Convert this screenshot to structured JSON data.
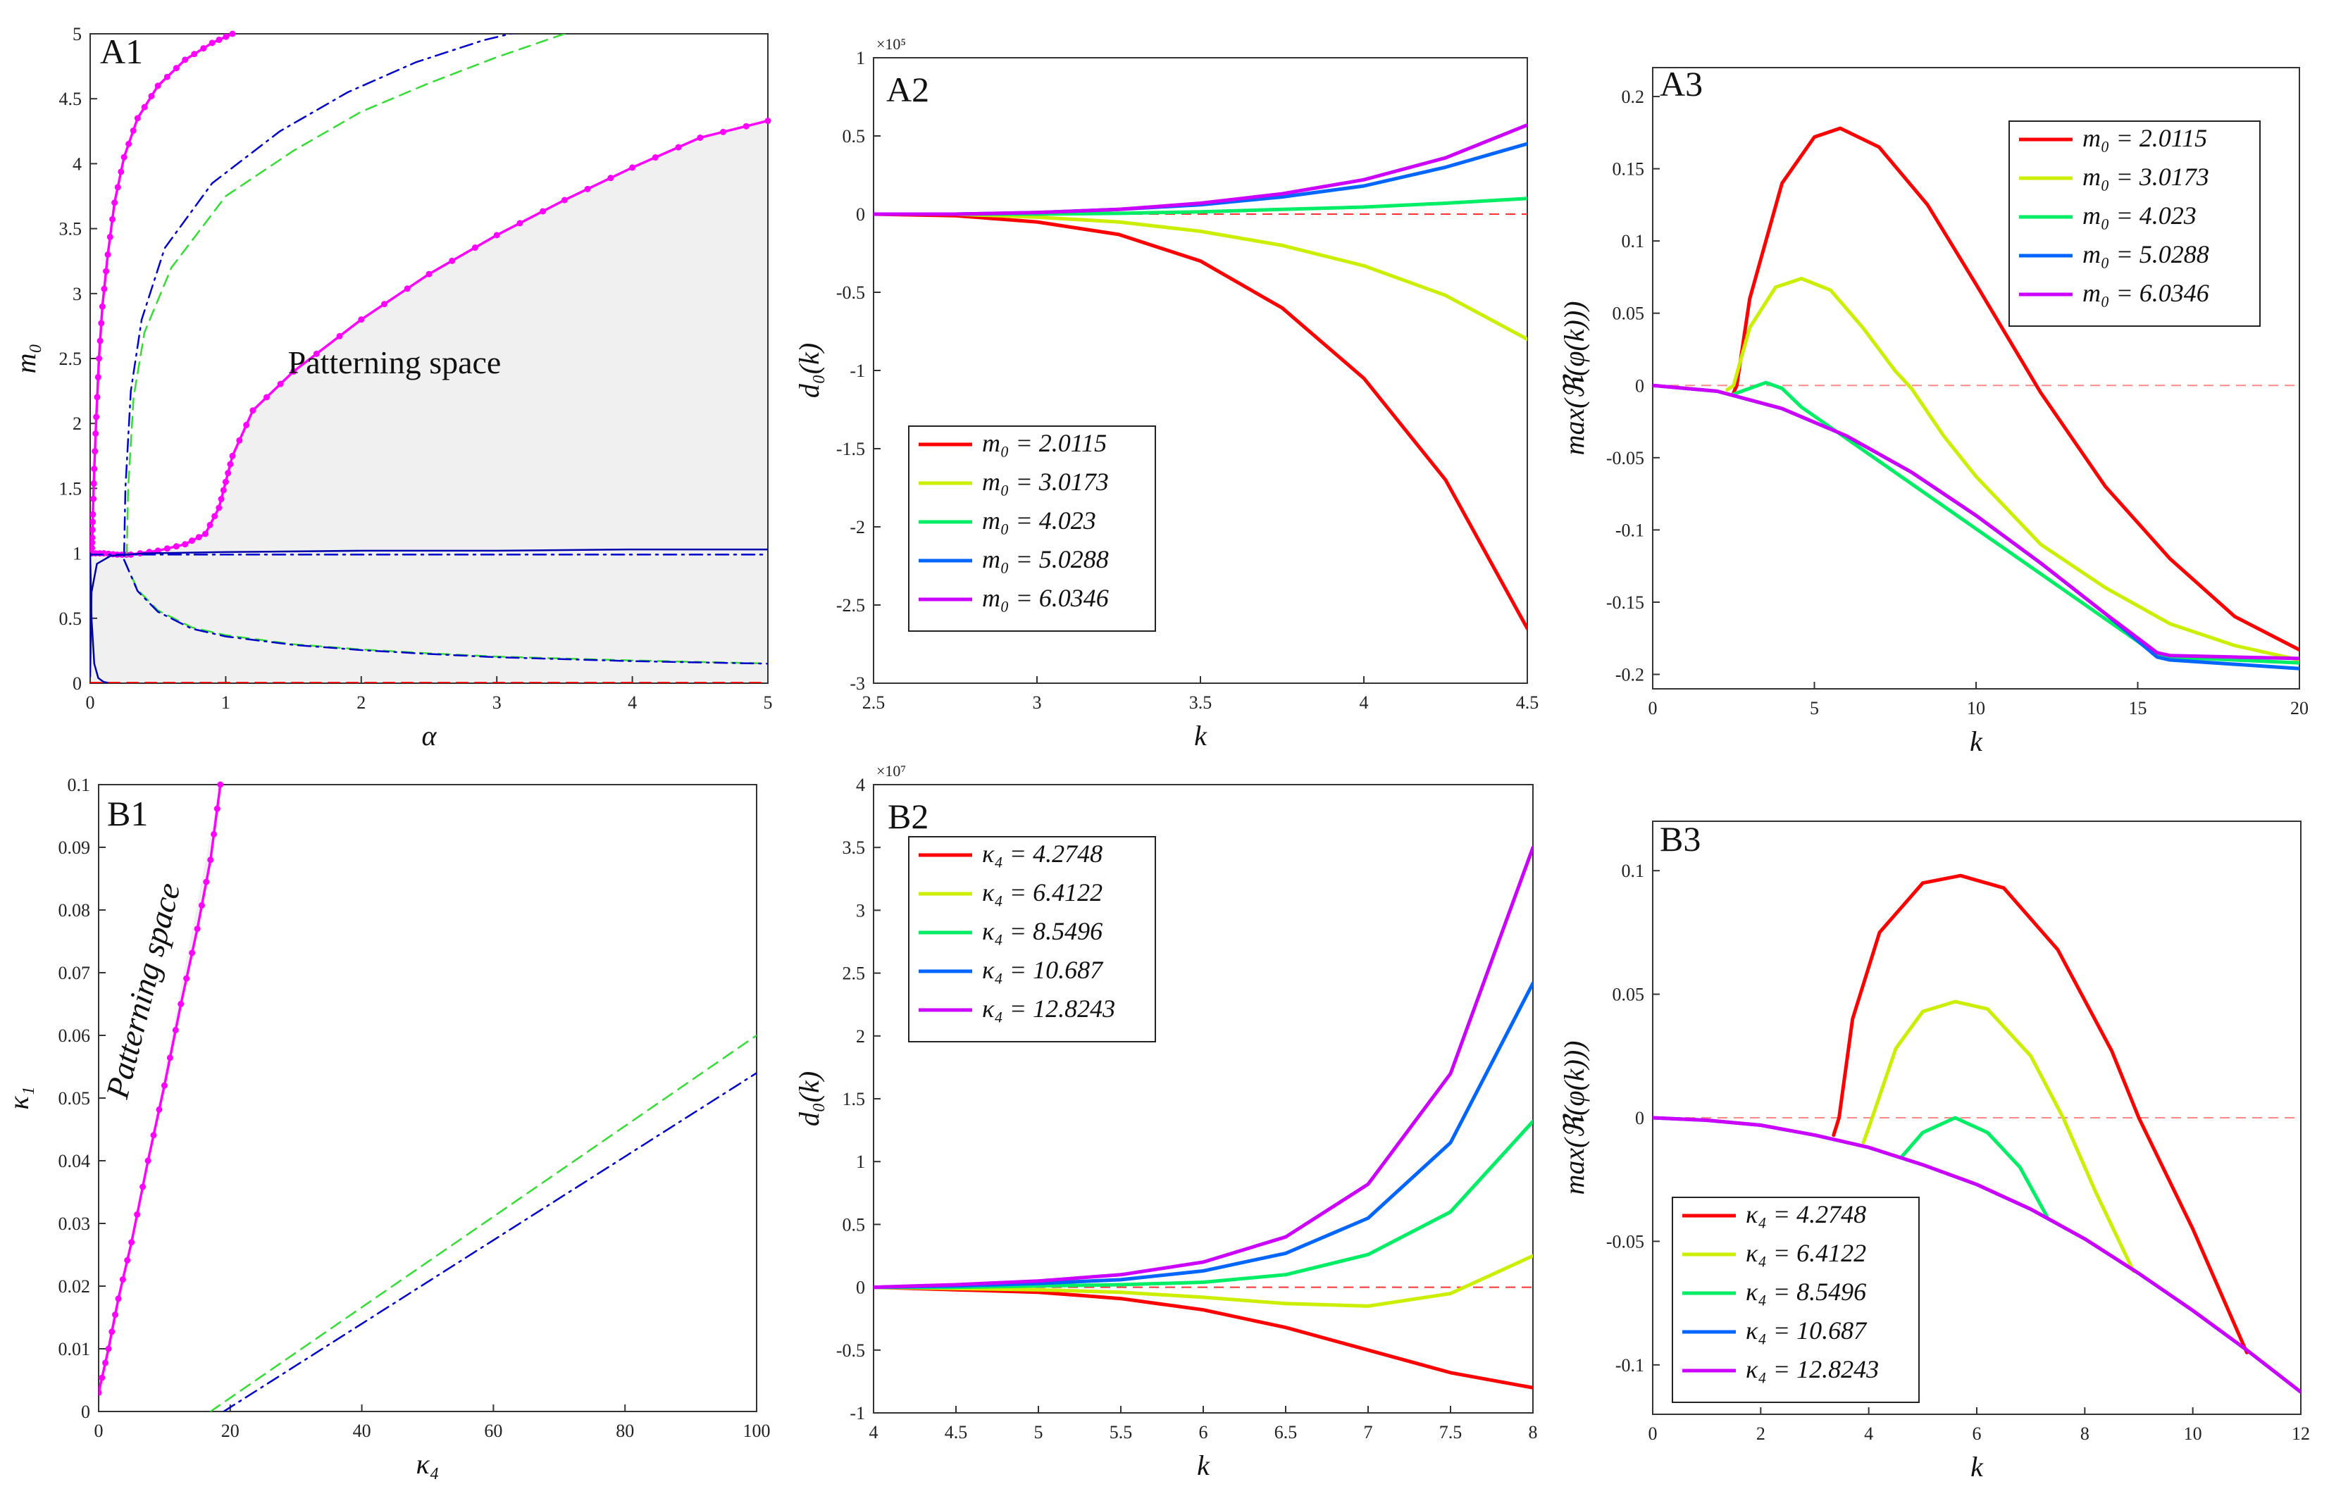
{
  "chart_data": [
    {
      "id": "A1",
      "type": "line",
      "panel_label": "A1",
      "xlabel": "α",
      "ylabel": "m₀",
      "xlim": [
        0,
        5
      ],
      "ylim": [
        0,
        5
      ],
      "xticks": [
        "0",
        "1",
        "2",
        "3",
        "4",
        "5"
      ],
      "yticks": [
        "0",
        "0.5",
        "1",
        "1.5",
        "2",
        "2.5",
        "3",
        "3.5",
        "4",
        "4.5",
        "5"
      ],
      "annotation": "Patterning space",
      "shaded_region": "right of upper magenta curve, below it down to m0 = 0",
      "series": [
        {
          "name": "upper boundary",
          "color": "#ff00ff",
          "style": "solid-dots",
          "x": [
            0.012,
            0.015,
            0.02,
            0.03,
            0.045,
            0.065,
            0.09,
            0.13,
            0.18,
            0.25,
            0.35,
            0.5,
            0.7,
            0.9,
            1.05
          ],
          "y": [
            1.0,
            1.12,
            1.3,
            1.65,
            2.05,
            2.5,
            2.9,
            3.3,
            3.7,
            4.05,
            4.35,
            4.6,
            4.8,
            4.93,
            5.0
          ]
        },
        {
          "name": "lower boundary",
          "color": "#ff00ff",
          "style": "solid-dots",
          "x": [
            0.01,
            0.1,
            0.2,
            0.3,
            0.5,
            0.7,
            0.85,
            0.95,
            1.0,
            1.05,
            1.2,
            1.5,
            2.0,
            2.5,
            3.0,
            3.5,
            4.0,
            4.5,
            5.0
          ],
          "y": [
            1.0,
            1.0,
            0.99,
            0.99,
            1.02,
            1.07,
            1.15,
            1.35,
            1.55,
            1.75,
            2.1,
            2.4,
            2.8,
            3.15,
            3.45,
            3.72,
            3.97,
            4.2,
            4.33
          ]
        },
        {
          "name": "green dashed upper",
          "color": "#33dd33",
          "style": "dashed",
          "x": [
            0.27,
            0.28,
            0.32,
            0.4,
            0.6,
            1.0,
            1.5,
            2.0,
            2.5,
            3.0,
            3.5
          ],
          "y": [
            0.98,
            1.5,
            2.2,
            2.7,
            3.2,
            3.75,
            4.1,
            4.4,
            4.62,
            4.82,
            5.0
          ]
        },
        {
          "name": "blue dash-dot upper",
          "color": "#0000cc",
          "style": "dashdot",
          "x": [
            0.25,
            0.26,
            0.3,
            0.38,
            0.55,
            0.9,
            1.4,
            1.9,
            2.4,
            2.9,
            3.3
          ],
          "y": [
            0.98,
            1.5,
            2.25,
            2.8,
            3.35,
            3.85,
            4.25,
            4.55,
            4.78,
            4.95,
            5.05
          ]
        },
        {
          "name": "green dashed lower",
          "color": "#33dd33",
          "style": "dashed",
          "x": [
            0.25,
            0.35,
            0.5,
            0.75,
            1.0,
            1.5,
            2.0,
            2.5,
            3.0,
            3.5,
            4.0,
            4.5,
            5.0
          ],
          "y": [
            0.95,
            0.72,
            0.56,
            0.43,
            0.37,
            0.3,
            0.26,
            0.23,
            0.205,
            0.19,
            0.175,
            0.163,
            0.152
          ]
        },
        {
          "name": "blue dash-dot lower",
          "color": "#0000cc",
          "style": "dashdot",
          "x": [
            0.25,
            0.35,
            0.5,
            0.75,
            1.0,
            1.5,
            2.0,
            2.5,
            3.0,
            3.5,
            4.0,
            4.5,
            5.0
          ],
          "y": [
            0.95,
            0.71,
            0.55,
            0.42,
            0.36,
            0.295,
            0.255,
            0.225,
            0.2,
            0.185,
            0.17,
            0.16,
            0.15
          ]
        },
        {
          "name": "blue solid upper",
          "color": "#0000aa",
          "style": "solid",
          "x": [
            0.0,
            0.01,
            0.05,
            0.15,
            0.4,
            1.0,
            2.0,
            3.0,
            4.0,
            5.0
          ],
          "y": [
            0.05,
            0.7,
            0.92,
            0.98,
            1.0,
            1.01,
            1.02,
            1.02,
            1.03,
            1.03
          ]
        },
        {
          "name": "blue dash-dot m0=1",
          "color": "#0000cc",
          "style": "dashdot",
          "x": [
            0.0,
            5.0
          ],
          "y": [
            0.99,
            0.99
          ]
        },
        {
          "name": "blue solid lower",
          "color": "#0000aa",
          "style": "solid",
          "x": [
            0.0,
            0.01,
            0.03,
            0.06,
            0.1,
            0.15
          ],
          "y": [
            1.0,
            0.5,
            0.15,
            0.04,
            0.01,
            0.0
          ]
        },
        {
          "name": "red dashed m0=0",
          "color": "#ee0000",
          "style": "dashed",
          "x": [
            0.0,
            5.0
          ],
          "y": [
            0.003,
            0.003
          ]
        }
      ]
    },
    {
      "id": "A2",
      "type": "line",
      "panel_label": "A2",
      "xlabel": "k",
      "ylabel": "d₀(k)",
      "exponent_label": "×10⁵",
      "xlim": [
        2.5,
        4.5
      ],
      "ylim": [
        -3,
        1
      ],
      "xticks": [
        "2.5",
        "3",
        "3.5",
        "4",
        "4.5"
      ],
      "yticks": [
        "-3",
        "-2.5",
        "-2",
        "-1.5",
        "-1",
        "-0.5",
        "0",
        "0.5",
        "1"
      ],
      "legend_position": "bottom-left",
      "reference_line": {
        "y": 0,
        "color": "#ff3333",
        "style": "dashed"
      },
      "x": [
        2.5,
        2.75,
        3.0,
        3.25,
        3.5,
        3.75,
        4.0,
        4.25,
        4.5
      ],
      "series": [
        {
          "name": "m₀ = 2.0115",
          "color": "#ff0000",
          "values": [
            0,
            -0.01,
            -0.05,
            -0.13,
            -0.3,
            -0.6,
            -1.05,
            -1.7,
            -2.65
          ]
        },
        {
          "name": "m₀ = 3.0173",
          "color": "#ccee00",
          "values": [
            0,
            0,
            -0.02,
            -0.05,
            -0.11,
            -0.2,
            -0.33,
            -0.52,
            -0.8
          ]
        },
        {
          "name": "m₀ = 4.023",
          "color": "#00ee66",
          "values": [
            0,
            0,
            0,
            0.005,
            0.015,
            0.03,
            0.045,
            0.07,
            0.1
          ]
        },
        {
          "name": "m₀ = 5.0288",
          "color": "#0066ff",
          "values": [
            0,
            0,
            0.01,
            0.03,
            0.06,
            0.11,
            0.18,
            0.3,
            0.45
          ]
        },
        {
          "name": "m₀ = 6.0346",
          "color": "#cc00ff",
          "values": [
            0,
            0,
            0.01,
            0.03,
            0.07,
            0.13,
            0.22,
            0.36,
            0.57
          ]
        }
      ]
    },
    {
      "id": "A3",
      "type": "line",
      "panel_label": "A3",
      "xlabel": "k",
      "ylabel": "max(ℜ(φ(k)))",
      "xlim": [
        0,
        20
      ],
      "ylim": [
        -0.21,
        0.22
      ],
      "xticks": [
        "0",
        "5",
        "10",
        "15",
        "20"
      ],
      "yticks": [
        "-0.2",
        "-0.15",
        "-0.1",
        "-0.05",
        "0",
        "0.05",
        "0.1",
        "0.15",
        "0.2"
      ],
      "legend_position": "top-right",
      "reference_line": {
        "y": 0,
        "color": "#ff8888",
        "style": "dashed"
      },
      "series": [
        {
          "name": "m₀ = 2.0115",
          "color": "#ff0000",
          "x": [
            2.5,
            2.6,
            3.0,
            4.0,
            5.0,
            5.8,
            7.0,
            8.5,
            10.0,
            12.0,
            14.0,
            16.0,
            18.0,
            20.0
          ],
          "y": [
            -0.005,
            0.0,
            0.06,
            0.14,
            0.172,
            0.178,
            0.165,
            0.125,
            0.07,
            -0.005,
            -0.07,
            -0.12,
            -0.16,
            -0.183
          ]
        },
        {
          "name": "m₀ = 3.0173",
          "color": "#ccee00",
          "x": [
            2.3,
            2.5,
            3.0,
            3.8,
            4.6,
            5.5,
            6.5,
            7.5,
            8.0,
            9.0,
            10.0,
            12.0,
            14.0,
            16.0,
            18.0,
            20.0
          ],
          "y": [
            -0.003,
            0.0,
            0.04,
            0.068,
            0.074,
            0.066,
            0.04,
            0.01,
            -0.002,
            -0.035,
            -0.063,
            -0.11,
            -0.14,
            -0.165,
            -0.18,
            -0.19
          ]
        },
        {
          "name": "m₀ = 4.023",
          "color": "#00ee66",
          "x": [
            2.5,
            3.0,
            3.5,
            4.0,
            4.6,
            15.5,
            16.0,
            18.0,
            20.0
          ],
          "y": [
            -0.006,
            -0.002,
            0.002,
            -0.002,
            -0.015,
            -0.185,
            -0.188,
            -0.19,
            -0.192
          ]
        },
        {
          "name": "m₀ = 5.0288",
          "color": "#0066ff",
          "x": [
            0.0,
            2.0,
            4.0,
            6.0,
            8.0,
            10.0,
            12.0,
            14.0,
            15.6,
            16.0,
            18.0,
            20.0
          ],
          "y": [
            0.0,
            -0.004,
            -0.016,
            -0.035,
            -0.06,
            -0.09,
            -0.123,
            -0.158,
            -0.188,
            -0.19,
            -0.193,
            -0.196
          ]
        },
        {
          "name": "m₀ = 6.0346",
          "color": "#cc00ff",
          "x": [
            0.0,
            2.0,
            4.0,
            6.0,
            8.0,
            10.0,
            12.0,
            14.0,
            15.6,
            16.0,
            18.0,
            20.0
          ],
          "y": [
            0.0,
            -0.004,
            -0.016,
            -0.035,
            -0.06,
            -0.09,
            -0.123,
            -0.158,
            -0.185,
            -0.187,
            -0.188,
            -0.189
          ]
        }
      ]
    },
    {
      "id": "B1",
      "type": "line",
      "panel_label": "B1",
      "xlabel": "κ₄",
      "ylabel": "κ₁",
      "xlim": [
        0,
        100
      ],
      "ylim": [
        0,
        0.1
      ],
      "xticks": [
        "0",
        "20",
        "40",
        "60",
        "80",
        "100"
      ],
      "yticks": [
        "0",
        "0.01",
        "0.02",
        "0.03",
        "0.04",
        "0.05",
        "0.06",
        "0.07",
        "0.08",
        "0.09",
        "0.1"
      ],
      "annotation": "Patterning space",
      "series": [
        {
          "name": "boundary",
          "color": "#ff00ff",
          "style": "solid-dots",
          "x": [
            0.0,
            1.5,
            3.0,
            5.0,
            7.5,
            10.0,
            12.5,
            15.0,
            17.0,
            18.5
          ],
          "y": [
            0.003,
            0.01,
            0.018,
            0.027,
            0.04,
            0.052,
            0.065,
            0.077,
            0.088,
            0.1
          ]
        },
        {
          "name": "green dashed",
          "color": "#33dd33",
          "style": "dashed",
          "x": [
            17.0,
            100.0
          ],
          "y": [
            0.0,
            0.06
          ]
        },
        {
          "name": "blue dash-dot",
          "color": "#0000cc",
          "style": "dashdot",
          "x": [
            19.0,
            100.0
          ],
          "y": [
            0.0,
            0.054
          ]
        }
      ]
    },
    {
      "id": "B2",
      "type": "line",
      "panel_label": "B2",
      "xlabel": "k",
      "ylabel": "d₀(k)",
      "exponent_label": "×10⁷",
      "xlim": [
        4,
        8
      ],
      "ylim": [
        -1,
        4
      ],
      "xticks": [
        "4",
        "4.5",
        "5",
        "5.5",
        "6",
        "6.5",
        "7",
        "7.5",
        "8"
      ],
      "yticks": [
        "-1",
        "-0.5",
        "0",
        "0.5",
        "1",
        "1.5",
        "2",
        "2.5",
        "3",
        "3.5",
        "4"
      ],
      "legend_position": "top-left",
      "reference_line": {
        "y": 0,
        "color": "#ff3333",
        "style": "dashed"
      },
      "x": [
        4.0,
        4.5,
        5.0,
        5.5,
        6.0,
        6.5,
        7.0,
        7.5,
        8.0
      ],
      "series": [
        {
          "name": "κ₄ = 4.2748",
          "color": "#ff0000",
          "values": [
            0,
            -0.02,
            -0.04,
            -0.09,
            -0.18,
            -0.32,
            -0.5,
            -0.68,
            -0.8
          ]
        },
        {
          "name": "κ₄ = 6.4122",
          "color": "#ccee00",
          "values": [
            0,
            -0.01,
            -0.02,
            -0.04,
            -0.08,
            -0.13,
            -0.15,
            -0.05,
            0.25
          ]
        },
        {
          "name": "κ₄ = 8.5496",
          "color": "#00ee66",
          "values": [
            0,
            0,
            0.01,
            0.02,
            0.04,
            0.1,
            0.26,
            0.6,
            1.32
          ]
        },
        {
          "name": "κ₄ = 10.687",
          "color": "#0066ff",
          "values": [
            0,
            0.01,
            0.03,
            0.06,
            0.13,
            0.27,
            0.55,
            1.15,
            2.42
          ]
        },
        {
          "name": "κ₄ = 12.8243",
          "color": "#cc00ff",
          "values": [
            0,
            0.02,
            0.05,
            0.1,
            0.2,
            0.4,
            0.82,
            1.7,
            3.5
          ]
        }
      ]
    },
    {
      "id": "B3",
      "type": "line",
      "panel_label": "B3",
      "xlabel": "k",
      "ylabel": "max(ℜ(φ(k)))",
      "xlim": [
        0,
        12
      ],
      "ylim": [
        -0.12,
        0.12
      ],
      "xticks": [
        "0",
        "2",
        "4",
        "6",
        "8",
        "10",
        "12"
      ],
      "yticks": [
        "-0.1",
        "-0.05",
        "0",
        "0.05",
        "0.1"
      ],
      "legend_position": "bottom-left",
      "reference_line": {
        "y": 0,
        "color": "#ff8888",
        "style": "dashed"
      },
      "series": [
        {
          "name": "κ₄ = 4.2748",
          "color": "#ff0000",
          "x": [
            3.35,
            3.45,
            3.7,
            4.2,
            5.0,
            5.7,
            6.5,
            7.5,
            8.5,
            9.0,
            10.0,
            11.0
          ],
          "y": [
            -0.007,
            0.0,
            0.04,
            0.075,
            0.095,
            0.098,
            0.093,
            0.068,
            0.027,
            0.0,
            -0.045,
            -0.095
          ]
        },
        {
          "name": "κ₄ = 6.4122",
          "color": "#ccee00",
          "x": [
            3.9,
            4.0,
            4.5,
            5.0,
            5.6,
            6.2,
            7.0,
            7.6,
            8.2,
            8.9
          ],
          "y": [
            -0.01,
            -0.004,
            0.028,
            0.043,
            0.047,
            0.044,
            0.025,
            0.0,
            -0.03,
            -0.062
          ]
        },
        {
          "name": "κ₄ = 8.5496",
          "color": "#00ee66",
          "x": [
            4.6,
            5.0,
            5.6,
            6.2,
            6.8,
            7.3
          ],
          "y": [
            -0.016,
            -0.006,
            0.0,
            -0.006,
            -0.02,
            -0.04
          ]
        },
        {
          "name": "κ₄ = 10.687",
          "color": "#0066ff",
          "x": [
            0,
            1,
            2,
            3,
            4,
            5,
            6,
            7,
            8,
            9,
            10,
            11,
            12
          ],
          "y": [
            0,
            -0.001,
            -0.003,
            -0.007,
            -0.012,
            -0.019,
            -0.027,
            -0.037,
            -0.049,
            -0.063,
            -0.078,
            -0.094,
            -0.111
          ]
        },
        {
          "name": "κ₄ = 12.8243",
          "color": "#cc00ff",
          "x": [
            0,
            1,
            2,
            3,
            4,
            5,
            6,
            7,
            8,
            9,
            10,
            11,
            12
          ],
          "y": [
            0,
            -0.001,
            -0.003,
            -0.007,
            -0.012,
            -0.019,
            -0.027,
            -0.037,
            -0.049,
            -0.063,
            -0.078,
            -0.094,
            -0.111
          ]
        }
      ]
    }
  ]
}
